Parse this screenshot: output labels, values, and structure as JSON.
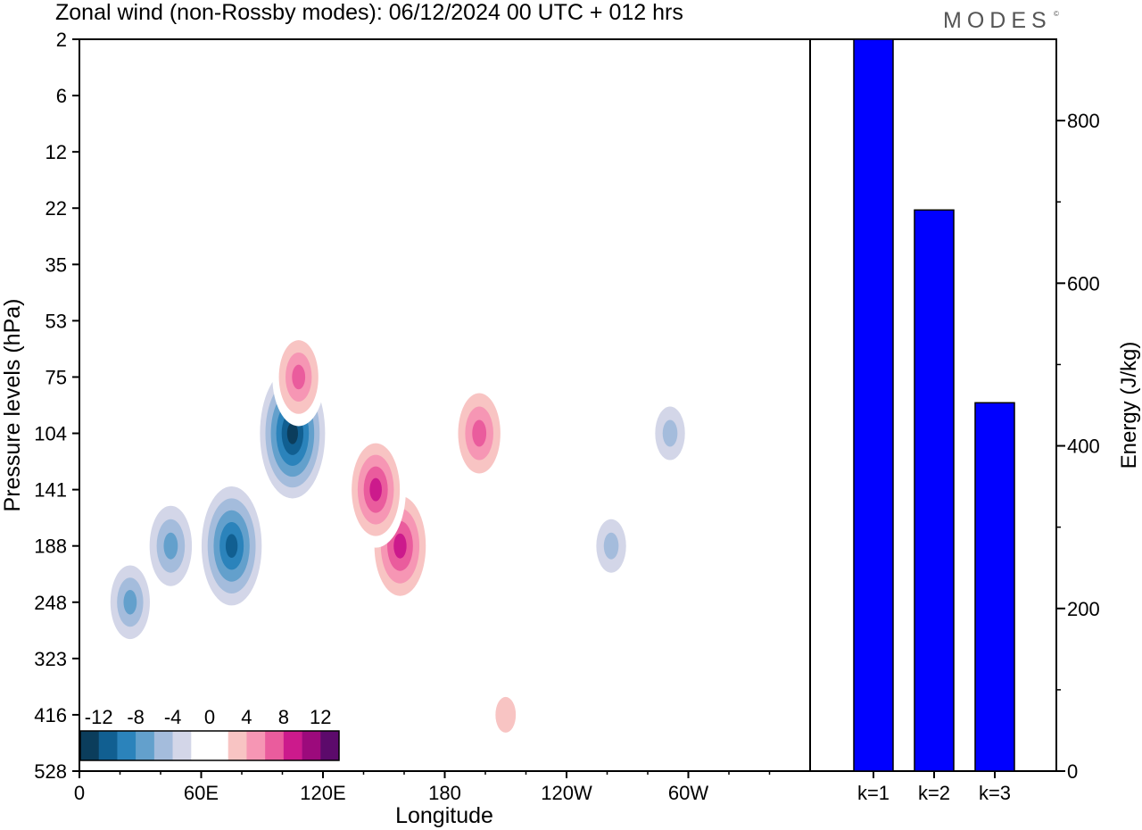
{
  "header": {
    "title": "Zonal wind (non-Rossby modes):  06/12/2024  00 UTC  + 012 hrs",
    "brand": "MODES",
    "brand_mark": "©"
  },
  "chart_data": [
    {
      "type": "heatmap",
      "xlabel": "Longitude",
      "ylabel": "Pressure levels (hPa)",
      "x_ticks": [
        "0",
        "60E",
        "120E",
        "180",
        "120W",
        "60W"
      ],
      "y_ticks": [
        "2",
        "6",
        "12",
        "22",
        "35",
        "53",
        "75",
        "104",
        "141",
        "188",
        "248",
        "323",
        "416",
        "528"
      ],
      "colorbar": {
        "labels": [
          "-12",
          "-8",
          "-4",
          "0",
          "4",
          "8",
          "12"
        ],
        "colors": [
          "#0b3d5c",
          "#115f91",
          "#2b83bb",
          "#63a0cc",
          "#a4bcdc",
          "#d3d6e8",
          "#ffffff",
          "#ffffff",
          "#f8c4c3",
          "#f696b4",
          "#ea5c9d",
          "#cc1a8c",
          "#9c0a7c",
          "#5c0a6b"
        ]
      },
      "features": [
        {
          "lon": 105,
          "level": "104",
          "value": -13
        },
        {
          "lon": 75,
          "level": "188",
          "value": -12
        },
        {
          "lon": 45,
          "level": "188",
          "value": -8
        },
        {
          "lon": 25,
          "level": "248",
          "value": -7
        },
        {
          "lon": 158,
          "level": "188",
          "value": 10
        },
        {
          "lon": 146,
          "level": "141",
          "value": 9
        },
        {
          "lon": 197,
          "level": "104",
          "value": 8
        },
        {
          "lon": 108,
          "level": "75",
          "value": 7
        },
        {
          "lon": 210,
          "level": "416",
          "value": 4
        },
        {
          "lon": 291,
          "level": "104",
          "value": -5
        },
        {
          "lon": 262,
          "level": "188",
          "value": -5
        }
      ],
      "colors": {
        "negative": "#2b83bb",
        "positive": "#ea5c9d"
      }
    },
    {
      "type": "bar",
      "categories": [
        "k=1",
        "k=2",
        "k=3"
      ],
      "values": [
        900,
        690,
        453
      ],
      "ylabel": "Energy (J/kg)",
      "ylim": [
        0,
        900
      ],
      "y_ticks": [
        0,
        200,
        400,
        600,
        800
      ],
      "bar_color": "#0000ff"
    }
  ]
}
